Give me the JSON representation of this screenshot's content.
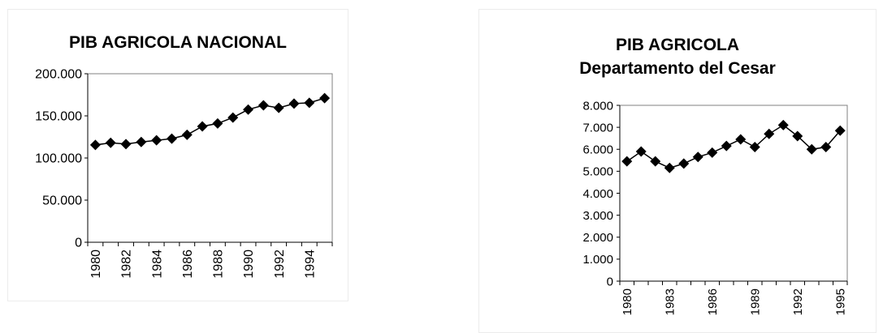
{
  "chart_data": [
    {
      "type": "line",
      "title": "PIB AGRICOLA NACIONAL",
      "subtitle": "",
      "xlabel": "",
      "ylabel": "",
      "x": [
        1980,
        1981,
        1982,
        1983,
        1984,
        1985,
        1986,
        1987,
        1988,
        1989,
        1990,
        1991,
        1992,
        1993,
        1994,
        1995
      ],
      "series": [
        {
          "values": [
            115500,
            118000,
            116500,
            119000,
            121000,
            123000,
            127500,
            137500,
            141000,
            148000,
            157500,
            162500,
            159500,
            164500,
            165500,
            171000
          ]
        }
      ],
      "ylim": [
        0,
        200000
      ],
      "y_tick_labels": [
        "0",
        "50.000",
        "100.000",
        "150.000",
        "200.000"
      ],
      "x_tick_labels": [
        "1980",
        "1982",
        "1984",
        "1986",
        "1988",
        "1990",
        "1992",
        "1994"
      ],
      "marker": "diamond",
      "grid": false,
      "legend": "none"
    },
    {
      "type": "line",
      "title": "PIB AGRICOLA",
      "subtitle": "Departamento del Cesar",
      "xlabel": "",
      "ylabel": "",
      "x": [
        1980,
        1981,
        1982,
        1983,
        1984,
        1985,
        1986,
        1987,
        1988,
        1989,
        1990,
        1991,
        1992,
        1993,
        1994,
        1995
      ],
      "series": [
        {
          "values": [
            5450,
            5900,
            5450,
            5150,
            5350,
            5650,
            5850,
            6150,
            6450,
            6100,
            6700,
            7100,
            6600,
            6000,
            6100,
            6850
          ]
        }
      ],
      "ylim": [
        0,
        8000
      ],
      "y_tick_labels": [
        "0",
        "1.000",
        "2.000",
        "3.000",
        "4.000",
        "5.000",
        "6.000",
        "7.000",
        "8.000"
      ],
      "x_tick_labels": [
        "1980",
        "1983",
        "1986",
        "1989",
        "1992",
        "1995"
      ],
      "marker": "diamond",
      "grid": false,
      "legend": "none"
    }
  ]
}
